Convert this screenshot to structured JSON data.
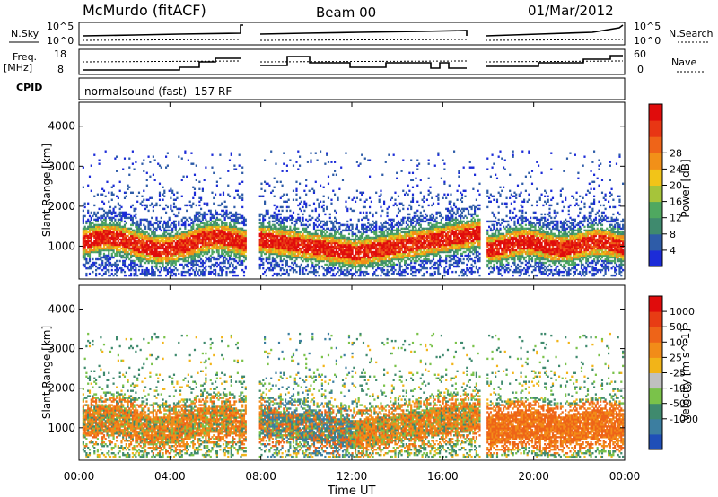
{
  "header": {
    "station": "McMurdo (fitACF)",
    "beam": "Beam 00",
    "date": "01/Mar/2012"
  },
  "strips": {
    "nsky_label": "N.Sky",
    "nsky_ticks": [
      "10^5",
      "10^0"
    ],
    "nsearch_label": "N.Search",
    "nsearch_ticks": [
      "10^5",
      "10^0"
    ],
    "freq_label_1": "Freq.",
    "freq_label_2": "[MHz]",
    "freq_ticks": [
      "18",
      "8"
    ],
    "nave_label": "Nave",
    "nave_ticks": [
      "60",
      "0"
    ],
    "cpid_label": "CPID",
    "cpid_text": "normalsound (fast) -157 RF"
  },
  "chart_data": [
    {
      "type": "heatmap",
      "name": "Power",
      "xlabel": "Time UT",
      "ylabel": "Slant Range [km]",
      "x_ticks": [
        "00:00",
        "04:00",
        "08:00",
        "12:00",
        "16:00",
        "20:00",
        "00:00"
      ],
      "xlim_hours": [
        0,
        24
      ],
      "y_ticks": [
        1000,
        2000,
        3000,
        4000
      ],
      "ylim": [
        180,
        4600
      ],
      "colorbar_label": "Power [dB]",
      "colorbar_ticks": [
        "4",
        "8",
        "12",
        "16",
        "20",
        "24",
        "28"
      ],
      "colorbar_colors": [
        "#1c2cd8",
        "#2e5ca8",
        "#3f8a6e",
        "#4fa860",
        "#a6c43a",
        "#f2c418",
        "#f29018",
        "#ef6418",
        "#e83614",
        "#e00c0c"
      ],
      "data_gaps_hours": [
        [
          7.3,
          7.9
        ],
        [
          17.6,
          17.9
        ]
      ]
    },
    {
      "type": "heatmap",
      "name": "Velocity",
      "xlabel": "Time UT",
      "ylabel": "Slant Range [km]",
      "x_ticks": [
        "00:00",
        "04:00",
        "08:00",
        "12:00",
        "16:00",
        "20:00",
        "00:00"
      ],
      "xlim_hours": [
        0,
        24
      ],
      "y_ticks": [
        1000,
        2000,
        3000,
        4000
      ],
      "ylim": [
        180,
        4600
      ],
      "colorbar_label": "Velocity [m s^-1]",
      "colorbar_ticks": [
        "1000",
        "500",
        "100",
        "25",
        "-25",
        "-100",
        "-500",
        "-1000"
      ],
      "colorbar_colors": [
        "#1f4fb8",
        "#3c7ea0",
        "#3f8a6e",
        "#7ac24a",
        "#c0c0c0",
        "#f2b418",
        "#f28c18",
        "#ee6418",
        "#e83c14",
        "#e00c0c"
      ],
      "data_gaps_hours": [
        [
          7.3,
          7.9
        ],
        [
          17.6,
          17.9
        ]
      ]
    }
  ]
}
